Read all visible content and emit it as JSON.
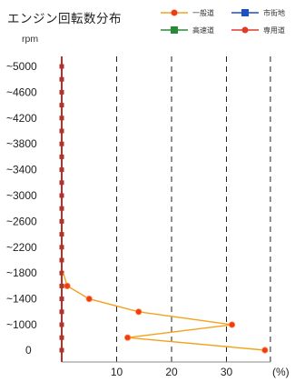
{
  "chart_data": {
    "type": "line",
    "title": "エンジン回転数分布",
    "ylabel": "rpm",
    "xlabel": "(%)",
    "x_ticks": [
      "10",
      "20",
      "30"
    ],
    "y_ticks": [
      "~5000",
      "~4600",
      "~4200",
      "~3800",
      "~3400",
      "~3000",
      "~2600",
      "~2200",
      "~1800",
      "~1400",
      "~1000",
      "0"
    ],
    "xlim": [
      0,
      38
    ],
    "grid": "vertical dashed",
    "legend": "top-right",
    "legend_items": [
      {
        "label": "一般道",
        "color": "#e8431f",
        "marker": "circle"
      },
      {
        "label": "市街地",
        "color": "#1f4fc4",
        "marker": "square"
      },
      {
        "label": "高速道",
        "color": "#2a8a3a",
        "marker": "square"
      },
      {
        "label": "専用道",
        "color": "#e03a2a",
        "marker": "circle"
      }
    ],
    "series": [
      {
        "name": "一般道",
        "color": "#f4a21c",
        "marker_color": "#f03c14",
        "points": [
          {
            "y": "~1800",
            "x": 0.3
          },
          {
            "y": "~1600",
            "x": 1
          },
          {
            "y": "~1400",
            "x": 5
          },
          {
            "y": "~1200",
            "x": 14
          },
          {
            "y": "~1000",
            "x": 31
          },
          {
            "y": "~800",
            "x": 12
          },
          {
            "y": "0",
            "x": 37
          }
        ]
      }
    ]
  }
}
